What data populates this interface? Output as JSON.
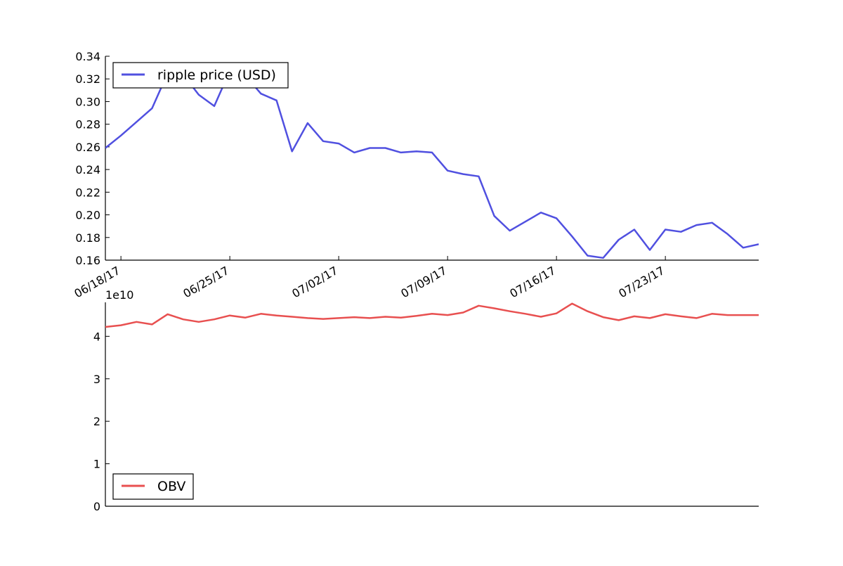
{
  "chart_data": [
    {
      "type": "line",
      "series": [
        {
          "name": "ripple price (USD)",
          "color": "#5050e0",
          "x": [
            "2017-06-17",
            "2017-06-18",
            "2017-06-19",
            "2017-06-20",
            "2017-06-21",
            "2017-06-22",
            "2017-06-23",
            "2017-06-24",
            "2017-06-25",
            "2017-06-26",
            "2017-06-27",
            "2017-06-28",
            "2017-06-29",
            "2017-06-30",
            "2017-07-01",
            "2017-07-02",
            "2017-07-03",
            "2017-07-04",
            "2017-07-05",
            "2017-07-06",
            "2017-07-07",
            "2017-07-08",
            "2017-07-09",
            "2017-07-10",
            "2017-07-11",
            "2017-07-12",
            "2017-07-13",
            "2017-07-14",
            "2017-07-15",
            "2017-07-16",
            "2017-07-17",
            "2017-07-18",
            "2017-07-19",
            "2017-07-20",
            "2017-07-21",
            "2017-07-22",
            "2017-07-23",
            "2017-07-24",
            "2017-07-25",
            "2017-07-26",
            "2017-07-27"
          ],
          "values": [
            0.259,
            0.27,
            0.282,
            0.294,
            0.325,
            0.324,
            0.306,
            0.296,
            0.327,
            0.323,
            0.307,
            0.301,
            0.256,
            0.281,
            0.265,
            0.263,
            0.255,
            0.259,
            0.259,
            0.255,
            0.256,
            0.255,
            0.239,
            0.236,
            0.234,
            0.199,
            0.186,
            0.194,
            0.202,
            0.197,
            0.181,
            0.164,
            0.162,
            0.178,
            0.187,
            0.169,
            0.187,
            0.185,
            0.191,
            0.193,
            0.183
          ]
        }
      ],
      "x_extra": [
        {
          "x": "2017-07-28",
          "y": 0.171
        },
        {
          "x": "2017-07-29",
          "y": 0.174
        }
      ],
      "ylim": [
        0.16,
        0.34
      ],
      "yticks": [
        "0.16",
        "0.18",
        "0.20",
        "0.22",
        "0.24",
        "0.26",
        "0.28",
        "0.30",
        "0.32",
        "0.34"
      ],
      "xticks": [
        "06/18/17",
        "06/25/17",
        "07/02/17",
        "07/09/17",
        "07/16/17",
        "07/23/17"
      ],
      "legend": {
        "placement": "upper-left",
        "label": "ripple price (USD)"
      }
    },
    {
      "type": "line",
      "series": [
        {
          "name": "OBV",
          "color": "#e85050",
          "x": [
            "2017-06-17",
            "2017-06-18",
            "2017-06-19",
            "2017-06-20",
            "2017-06-21",
            "2017-06-22",
            "2017-06-23",
            "2017-06-24",
            "2017-06-25",
            "2017-06-26",
            "2017-06-27",
            "2017-06-28",
            "2017-06-29",
            "2017-06-30",
            "2017-07-01",
            "2017-07-02",
            "2017-07-03",
            "2017-07-04",
            "2017-07-05",
            "2017-07-06",
            "2017-07-07",
            "2017-07-08",
            "2017-07-09",
            "2017-07-10",
            "2017-07-11",
            "2017-07-12",
            "2017-07-13",
            "2017-07-14",
            "2017-07-15",
            "2017-07-16",
            "2017-07-17",
            "2017-07-18",
            "2017-07-19",
            "2017-07-20",
            "2017-07-21",
            "2017-07-22",
            "2017-07-23",
            "2017-07-24",
            "2017-07-25",
            "2017-07-26",
            "2017-07-27",
            "2017-07-28",
            "2017-07-29"
          ],
          "values": [
            4.22,
            4.26,
            4.34,
            4.28,
            4.52,
            4.4,
            4.34,
            4.4,
            4.49,
            4.44,
            4.53,
            4.49,
            4.46,
            4.43,
            4.41,
            4.43,
            4.45,
            4.43,
            4.46,
            4.44,
            4.48,
            4.53,
            4.5,
            4.56,
            4.72,
            4.66,
            4.59,
            4.53,
            4.46,
            4.54,
            4.77,
            4.59,
            4.45,
            4.38,
            4.47,
            4.43,
            4.52,
            4.47,
            4.43,
            4.53,
            4.5,
            4.5,
            4.5
          ]
        }
      ],
      "ylim": [
        0,
        4.8
      ],
      "yticks": [
        "0",
        "1",
        "2",
        "3",
        "4"
      ],
      "exponent_label": "1e10",
      "legend": {
        "placement": "lower-left",
        "label": "OBV"
      }
    }
  ]
}
